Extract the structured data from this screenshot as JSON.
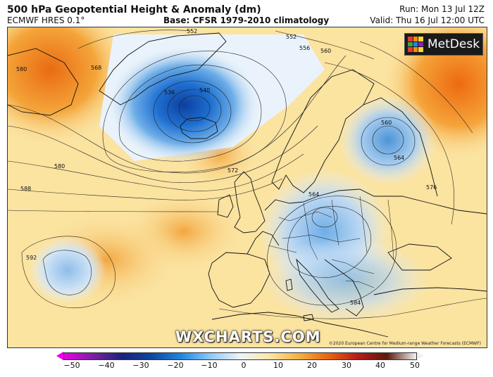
{
  "header": {
    "title": "500 hPa Geopotential Height & Anomaly (dm)",
    "model": "ECMWF HRES 0.1°",
    "base": "Base: CFSR 1979-2010 climatology",
    "run": "Run: Mon 13 Jul 12Z",
    "valid": "Valid: Thu 16 Jul 12:00 UTC"
  },
  "logo": {
    "text": "MetDesk"
  },
  "watermark": "WXCHARTS.COM",
  "copyright": "©2020 European Centre for Medium-range Weather Forecasts (ECMWF)",
  "contour_labels": [
    "552",
    "552",
    "556",
    "560",
    "568",
    "580",
    "536",
    "540",
    "560",
    "564",
    "572",
    "580",
    "588",
    "564",
    "576",
    "592",
    "584"
  ],
  "colorbar": {
    "ticks": [
      "−50",
      "−40",
      "−30",
      "−20",
      "−10",
      "0",
      "10",
      "20",
      "30",
      "40",
      "50"
    ],
    "colors": [
      "#e800e8",
      "#7b1fa2",
      "#1a237e",
      "#0d47a1",
      "#1e88e5",
      "#90caf9",
      "#eef4fb",
      "#fbe6a5",
      "#f5b043",
      "#e8650f",
      "#b71c1c",
      "#5d1a0a",
      "#f2f2f2"
    ]
  }
}
